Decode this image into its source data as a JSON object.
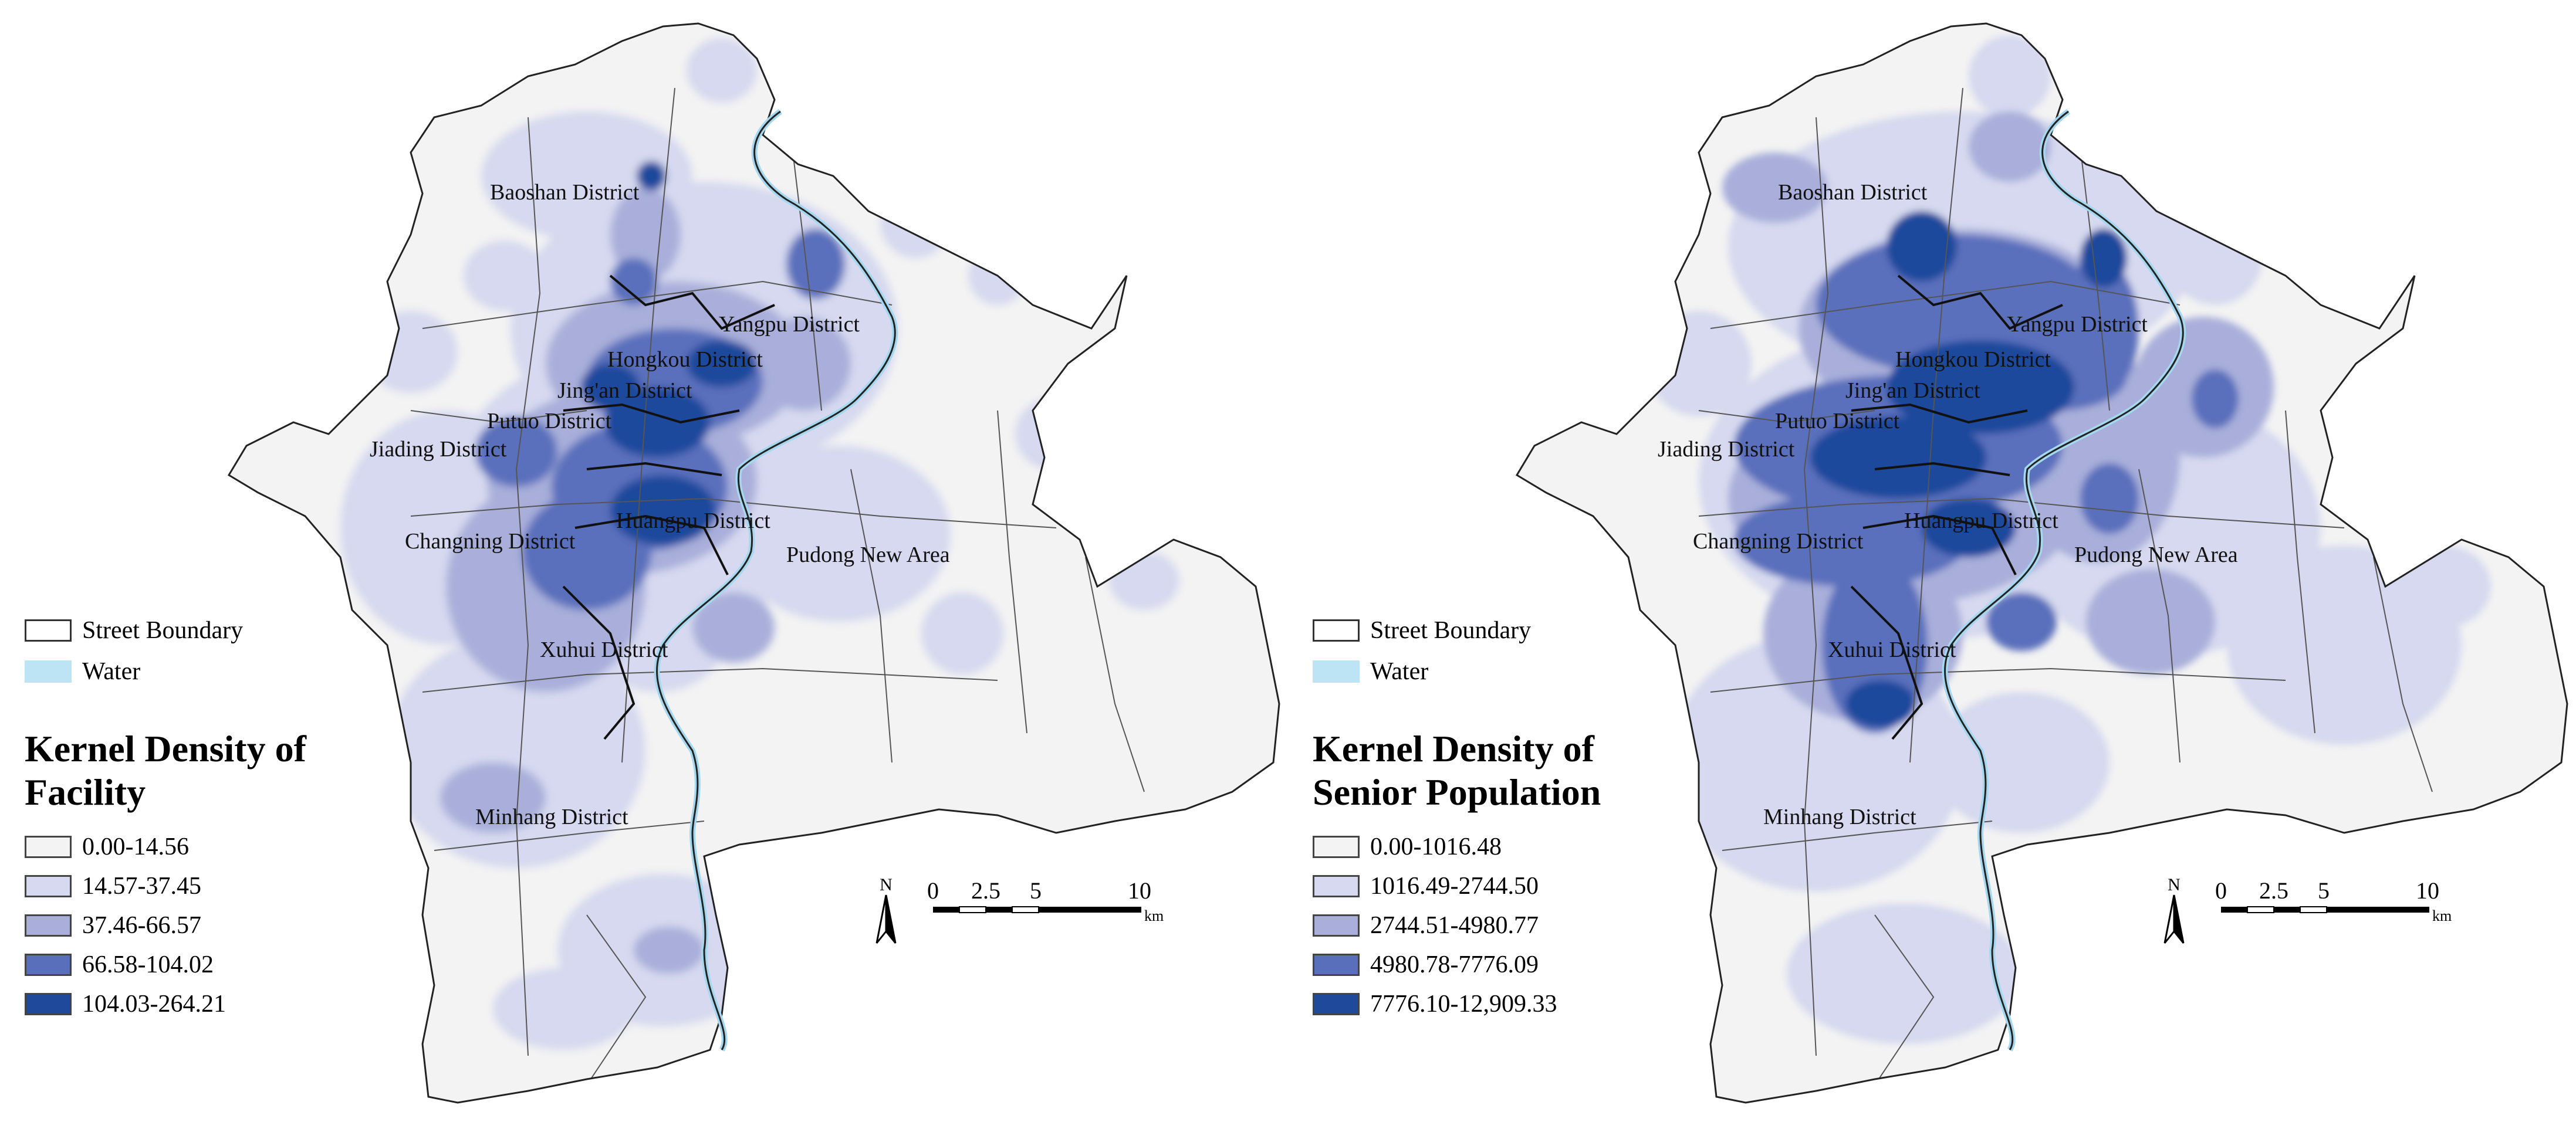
{
  "colors": {
    "class1": "#f3f3f3",
    "class2": "#d6d9ef",
    "class3": "#a9afda",
    "class4": "#5a6fbc",
    "class5": "#1f4a9c",
    "water": "#bde4f4",
    "boundary": "#222222"
  },
  "maps": [
    {
      "districts": [
        "Baoshan District",
        "Yangpu District",
        "Hongkou District",
        "Jing'an District",
        "Putuo District",
        "Jiading District",
        "Changning District",
        "Huangpu District",
        "Pudong New Area",
        "Xuhui District",
        "Minhang District"
      ],
      "legend": {
        "boundary_label": "Street Boundary",
        "water_label": "Water",
        "title_line1": "Kernel Density of",
        "title_line2": "Facility",
        "classes": [
          "0.00-14.56",
          "14.57-37.45",
          "37.46-66.57",
          "66.58-104.02",
          "104.03-264.21"
        ]
      },
      "scale": {
        "north": "N",
        "ticks": [
          "0",
          "2.5",
          "5",
          "10"
        ],
        "unit": "km"
      }
    },
    {
      "districts": [
        "Baoshan District",
        "Yangpu District",
        "Hongkou District",
        "Jing'an District",
        "Putuo District",
        "Jiading District",
        "Changning District",
        "Huangpu District",
        "Pudong New Area",
        "Xuhui District",
        "Minhang District"
      ],
      "legend": {
        "boundary_label": "Street Boundary",
        "water_label": "Water",
        "title_line1": "Kernel Density of",
        "title_line2": "Senior Population",
        "classes": [
          "0.00-1016.48",
          "1016.49-2744.50",
          "2744.51-4980.77",
          "4980.78-7776.09",
          "7776.10-12,909.33"
        ]
      },
      "scale": {
        "north": "N",
        "ticks": [
          "0",
          "2.5",
          "5",
          "10"
        ],
        "unit": "km"
      }
    }
  ]
}
